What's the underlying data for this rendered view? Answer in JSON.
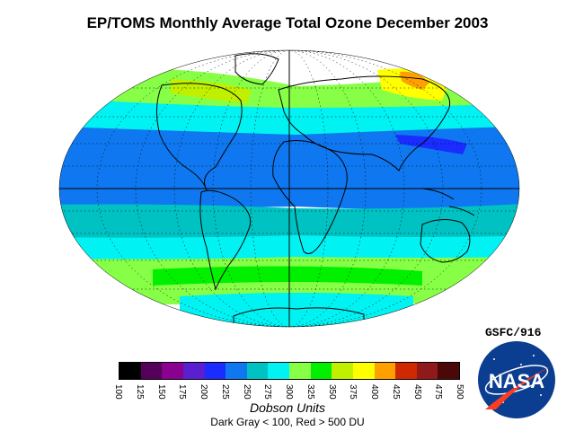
{
  "title": "EP/TOMS Monthly Average Total Ozone December 2003",
  "colorbar": {
    "colors": [
      "#000000",
      "#55005a",
      "#8a0090",
      "#5a20d0",
      "#1a2cff",
      "#0f78f0",
      "#00c2c2",
      "#00f2f2",
      "#86ff46",
      "#00f000",
      "#c0f000",
      "#ffff00",
      "#ffa000",
      "#d02800",
      "#901a1a",
      "#4a0808"
    ],
    "tick_labels": [
      "100",
      "125",
      "150",
      "175",
      "200",
      "225",
      "250",
      "275",
      "300",
      "325",
      "350",
      "375",
      "400",
      "425",
      "450",
      "475",
      "500"
    ],
    "units_label": "Dobson Units",
    "note": "Dark Gray < 100, Red > 500 DU"
  },
  "credit": "GSFC/916",
  "logo_text": "NASA",
  "map_colors": {
    "no_data": "#ffffff",
    "high_lat_green": "#86ff46",
    "yellow": "#ffff00",
    "orange": "#ffa000",
    "cyan": "#00f2f2",
    "blue": "#0f78f0",
    "dark_blue": "#1a2cff",
    "teal": "#00c2c2",
    "lime": "#c0f000"
  }
}
